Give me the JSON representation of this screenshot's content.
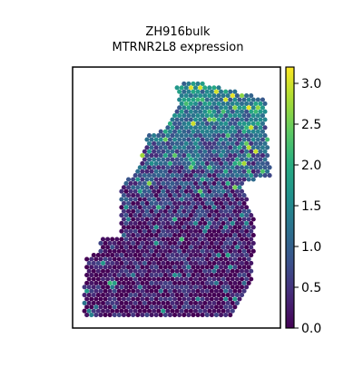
{
  "chart_data": {
    "type": "scatter",
    "title_line1": "ZH916bulk",
    "title_line2": "MTRNR2L8 expression",
    "xlabel": "",
    "ylabel": "",
    "colormap": "viridis",
    "color_range": [
      0.0,
      3.2
    ],
    "colorbar_ticks": [
      "0.0",
      "0.5",
      "1.0",
      "1.5",
      "2.0",
      "2.5",
      "3.0"
    ],
    "colorbar_tick_values": [
      0.0,
      0.5,
      1.0,
      1.5,
      2.0,
      2.5,
      3.0
    ],
    "points": []
  }
}
